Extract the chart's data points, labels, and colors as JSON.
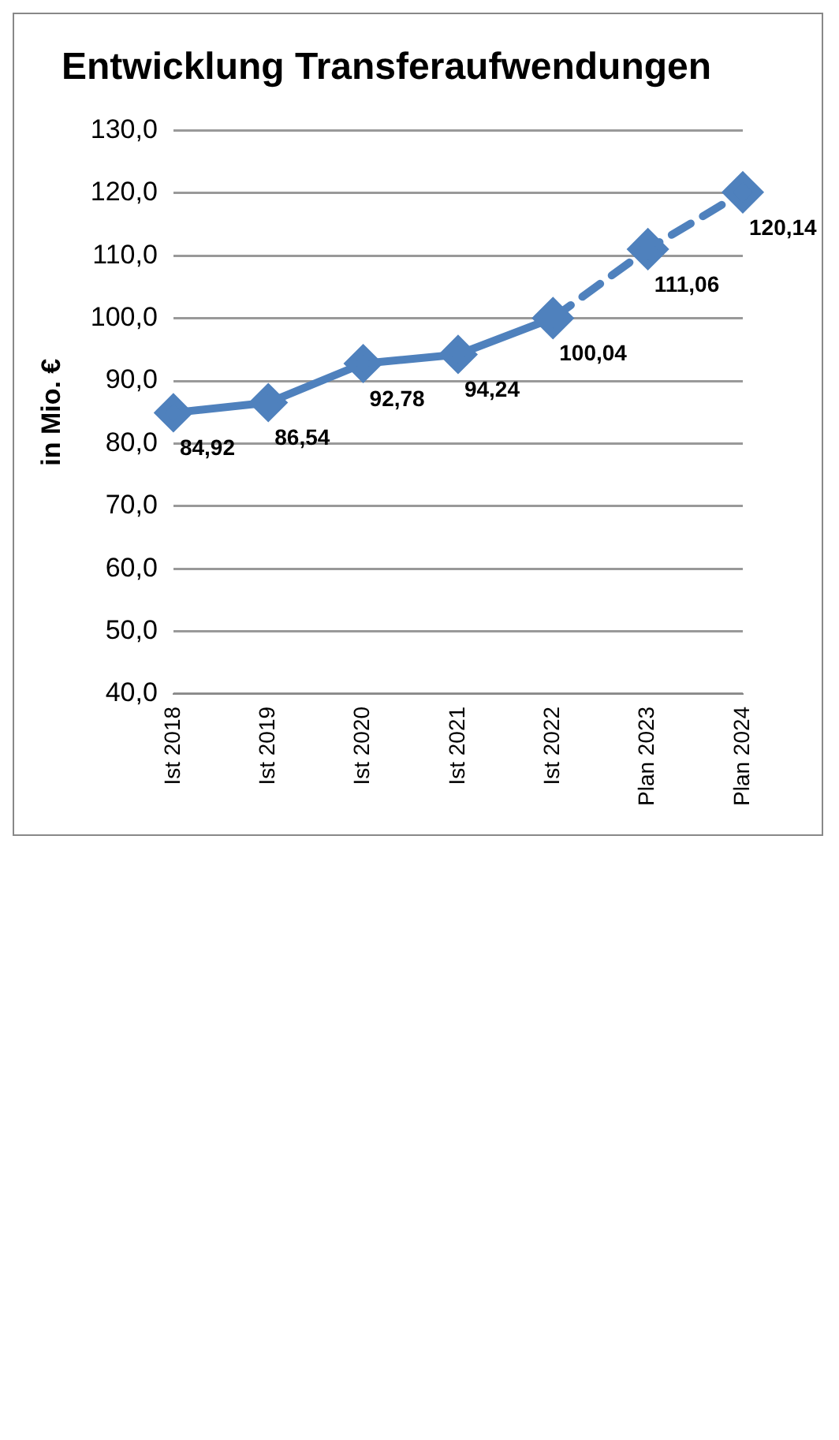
{
  "chart_data": {
    "type": "line",
    "title": "Entwicklung Transferaufwendungen",
    "ylabel": "in Mio. €",
    "categories": [
      "Ist 2018",
      "Ist 2019",
      "Ist 2020",
      "Ist 2021",
      "Ist 2022",
      "Plan 2023",
      "Plan 2024"
    ],
    "series": [
      {
        "color": "#4f81bd",
        "line_style": "solid",
        "values": [
          84.92,
          86.54,
          92.78,
          94.24,
          100.04,
          null,
          null
        ],
        "value_labels": [
          "84,92",
          "86,54",
          "92,78",
          "94,24",
          "100,04",
          null,
          null
        ]
      },
      {
        "color": "#4f81bd",
        "line_style": "dashed",
        "values": [
          null,
          null,
          null,
          null,
          100.04,
          111.06,
          120.14
        ],
        "value_labels": [
          null,
          null,
          null,
          null,
          null,
          "111,06",
          "120,14"
        ]
      }
    ],
    "marker": "diamond",
    "ylim": [
      40,
      130
    ],
    "yticks": [
      {
        "value": 40,
        "label": "40,0"
      },
      {
        "value": 50,
        "label": "50,0"
      },
      {
        "value": 60,
        "label": "60,0"
      },
      {
        "value": 70,
        "label": "70,0"
      },
      {
        "value": 80,
        "label": "80,0"
      },
      {
        "value": 90,
        "label": "90,0"
      },
      {
        "value": 100,
        "label": "100,0"
      },
      {
        "value": 110,
        "label": "110,0"
      },
      {
        "value": 120,
        "label": "120,0"
      },
      {
        "value": 130,
        "label": "130,0"
      }
    ],
    "grid": "y",
    "legend": false
  }
}
